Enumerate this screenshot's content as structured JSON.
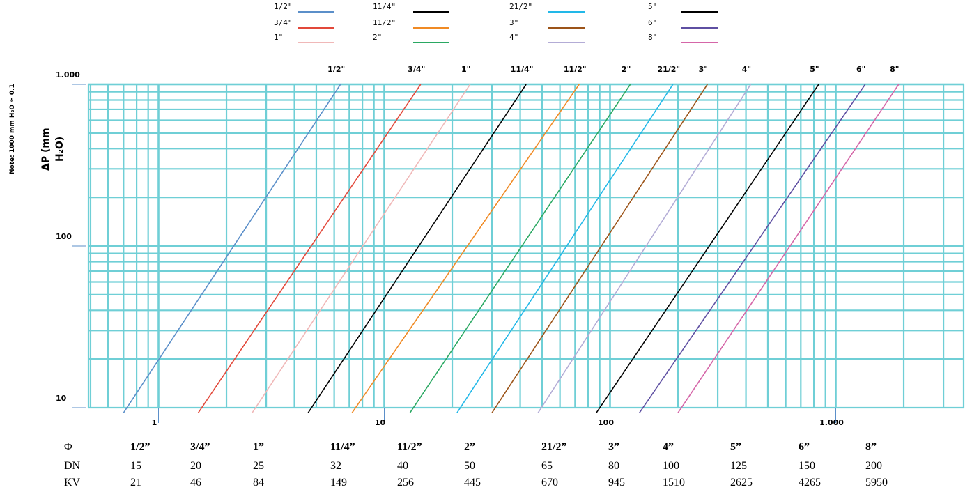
{
  "chart_data": {
    "type": "line",
    "note": "Note: 1000 mm H₂O ≈ 0.1",
    "ylabel_line1": "ΔP (mm",
    "ylabel_line2": "H₂O)",
    "x_scale": "log",
    "y_scale": "log",
    "xlim": [
      0.3,
      5000
    ],
    "ylim": [
      8,
      1050
    ],
    "x_ticks": [
      {
        "value": 1,
        "label": "1"
      },
      {
        "value": 10,
        "label": "10"
      },
      {
        "value": 100,
        "label": "100"
      },
      {
        "value": 1000,
        "label": "1.000"
      }
    ],
    "y_ticks": [
      {
        "value": 10,
        "label": "10"
      },
      {
        "value": 100,
        "label": "100"
      },
      {
        "value": 1000,
        "label": "1.000"
      }
    ],
    "grid": true,
    "grid_color": "#6fcfd6",
    "legend_position": "top",
    "series": [
      {
        "name": "1/2\"",
        "top_label": "1/2\"",
        "color": "#5b8fc9",
        "points": [
          [
            0.7,
            9.3
          ],
          [
            6.4,
            1000
          ]
        ]
      },
      {
        "name": "3/4\"",
        "top_label": "3/4\"",
        "color": "#e2483a",
        "points": [
          [
            1.5,
            9.3
          ],
          [
            14.5,
            1000
          ]
        ]
      },
      {
        "name": "1\"",
        "top_label": "1\"",
        "color": "#f0b8b8",
        "points": [
          [
            2.6,
            9.3
          ],
          [
            24,
            1000
          ]
        ]
      },
      {
        "name": "11/4\"",
        "top_label": "11/4\"",
        "color": "#000000",
        "points": [
          [
            4.6,
            9.3
          ],
          [
            42.5,
            1000
          ]
        ]
      },
      {
        "name": "11/2\"",
        "top_label": "11/2\"",
        "color": "#f08a24",
        "points": [
          [
            7.2,
            9.3
          ],
          [
            73,
            1000
          ]
        ]
      },
      {
        "name": "2\"",
        "top_label": "2\"",
        "color": "#2aa862",
        "points": [
          [
            13,
            9.3
          ],
          [
            123,
            1000
          ]
        ]
      },
      {
        "name": "21/2\"",
        "top_label": "21/2\"",
        "color": "#22b8e8",
        "points": [
          [
            21,
            9.3
          ],
          [
            190,
            1000
          ]
        ]
      },
      {
        "name": "3\"",
        "top_label": "3\"",
        "color": "#9c5419",
        "points": [
          [
            30,
            9.3
          ],
          [
            270,
            1000
          ]
        ]
      },
      {
        "name": "4\"",
        "top_label": "4\"",
        "color": "#b3acd6",
        "points": [
          [
            48,
            9.3
          ],
          [
            420,
            1000
          ]
        ]
      },
      {
        "name": "5\"",
        "top_label": "5\"",
        "color": "#000000",
        "points": [
          [
            87,
            9.3
          ],
          [
            840,
            1000
          ]
        ]
      },
      {
        "name": "6\"",
        "top_label": "6\"",
        "color": "#5e4fa2",
        "points": [
          [
            135,
            9.3
          ],
          [
            1350,
            1000
          ]
        ]
      },
      {
        "name": "8\"",
        "top_label": "8\"",
        "color": "#d566a8",
        "points": [
          [
            200,
            9.3
          ],
          [
            1900,
            1000
          ]
        ]
      }
    ]
  },
  "table": {
    "rows": [
      {
        "header": "Φ",
        "bold": true,
        "values": [
          "1/2”",
          "3/4”",
          "1”",
          "11/4”",
          "11/2”",
          "2”",
          "21/2”",
          "3”",
          "4”",
          "5”",
          "6”",
          "8”"
        ]
      },
      {
        "header": "DN",
        "bold": false,
        "values": [
          "15",
          "20",
          "25",
          "32",
          "40",
          "50",
          "65",
          "80",
          "100",
          "125",
          "150",
          "200"
        ]
      },
      {
        "header": "KV",
        "bold": false,
        "values": [
          "21",
          "46",
          "84",
          "149",
          "256",
          "445",
          "670",
          "945",
          "1510",
          "2625",
          "4265",
          "5950"
        ]
      }
    ]
  }
}
